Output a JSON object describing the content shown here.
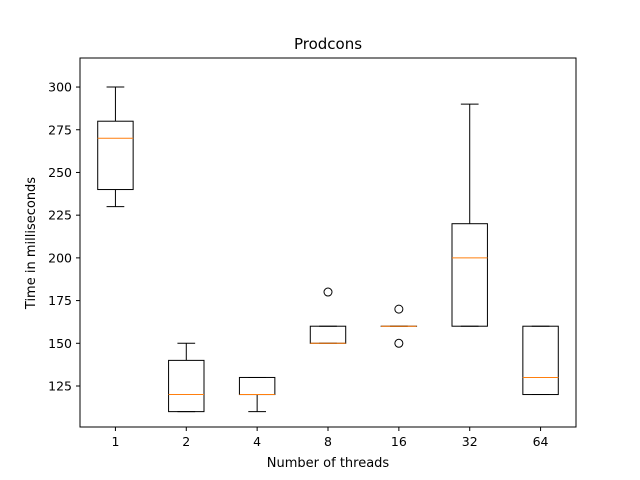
{
  "chart_data": {
    "type": "box",
    "title": "Prodcons",
    "xlabel": "Number of threads",
    "ylabel": "Time in milliseconds",
    "categories": [
      "1",
      "2",
      "4",
      "8",
      "16",
      "32",
      "64"
    ],
    "ylim": [
      101,
      317
    ],
    "yticks": [
      125,
      150,
      175,
      200,
      225,
      250,
      275,
      300
    ],
    "grid": false,
    "boxes": [
      {
        "category": "1",
        "whisker_low": 230,
        "q1": 240,
        "median": 270,
        "q3": 280,
        "whisker_high": 300,
        "outliers": []
      },
      {
        "category": "2",
        "whisker_low": 110,
        "q1": 110,
        "median": 120,
        "q3": 140,
        "whisker_high": 150,
        "outliers": []
      },
      {
        "category": "4",
        "whisker_low": 110,
        "q1": 120,
        "median": 120,
        "q3": 130,
        "whisker_high": 130,
        "outliers": []
      },
      {
        "category": "8",
        "whisker_low": 150,
        "q1": 150,
        "median": 150,
        "q3": 160,
        "whisker_high": 160,
        "outliers": [
          180
        ]
      },
      {
        "category": "16",
        "whisker_low": 160,
        "q1": 160,
        "median": 160,
        "q3": 160,
        "whisker_high": 160,
        "outliers": [
          170,
          150
        ]
      },
      {
        "category": "32",
        "whisker_low": 160,
        "q1": 160,
        "median": 200,
        "q3": 220,
        "whisker_high": 290,
        "outliers": []
      },
      {
        "category": "64",
        "whisker_low": 120,
        "q1": 120,
        "median": 130,
        "q3": 160,
        "whisker_high": 160,
        "outliers": []
      }
    ],
    "colors": {
      "box": "#000000",
      "median": "#ff7f0e",
      "outlier": "#000000"
    }
  }
}
